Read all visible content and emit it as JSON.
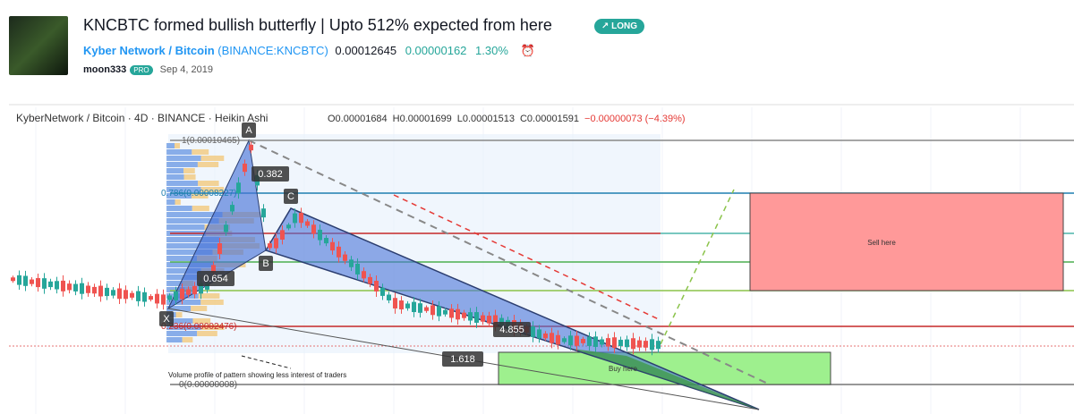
{
  "header": {
    "title": "KNCBTC formed bullish butterfly | Upto 512% expected from here",
    "badge": "LONG",
    "symbol_name": "Kyber Network / Bitcoin",
    "exchange": "(BINANCE:KNCBTC)",
    "price": "0.00012645",
    "change": "0.00000162",
    "change_percent": "1.30%",
    "author": "moon333",
    "author_badge": "PRO",
    "date": "Sep 4, 2019"
  },
  "chart": {
    "legend": "KyberNetwork / Bitcoin · 4D · BINANCE · Heikin Ashi",
    "ohlc": [
      "O0.00001684",
      "H0.00001699",
      "L0.00001513",
      "C0.00001591",
      "−0.00000073 (−4.39%)"
    ],
    "fib_levels": [
      "1(0.00010465)",
      "0.786(0.00008227)",
      "0.236(0.00002476)",
      "0(0.00000008)"
    ],
    "points": [
      "X",
      "A",
      "B",
      "C"
    ],
    "ratios": [
      "0.382",
      "0.654",
      "4.855",
      "1.618"
    ],
    "annotations": {
      "sell": "Sell here",
      "buy": "Buy here",
      "volume_note": "Volume profile of pattern showing less interest of traders"
    }
  }
}
